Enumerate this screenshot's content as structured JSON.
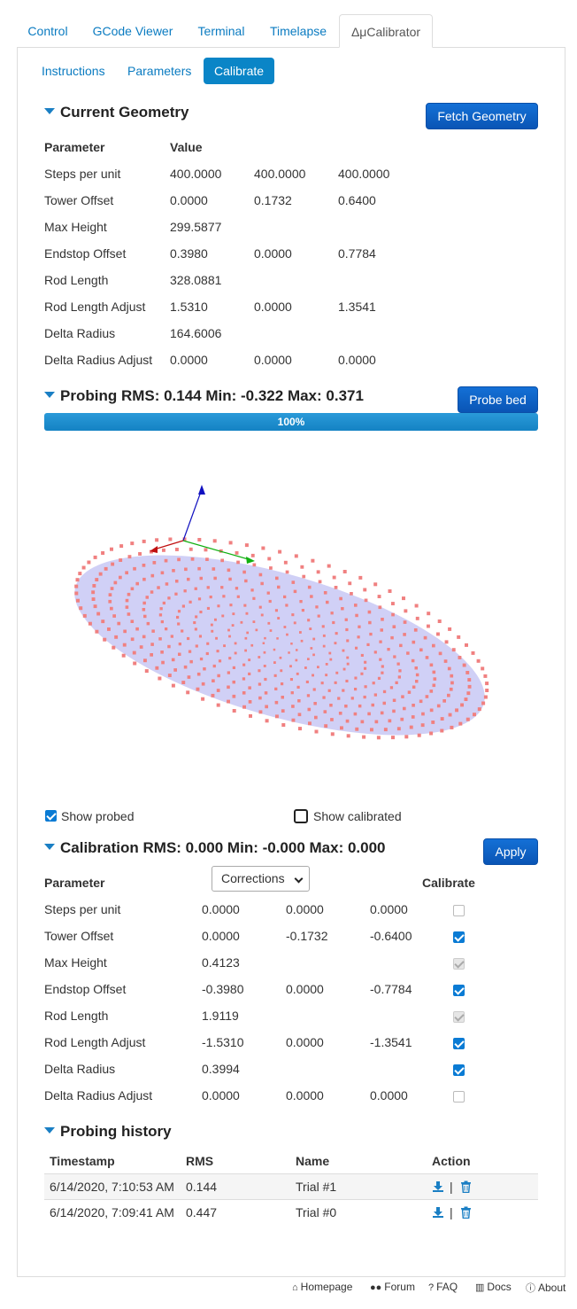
{
  "tabs": [
    {
      "label": "Control"
    },
    {
      "label": "GCode Viewer"
    },
    {
      "label": "Terminal"
    },
    {
      "label": "Timelapse"
    },
    {
      "label": "ΔμCalibrator"
    }
  ],
  "subtabs": [
    {
      "label": "Instructions"
    },
    {
      "label": "Parameters"
    },
    {
      "label": "Calibrate"
    }
  ],
  "geometry": {
    "title": "Current Geometry",
    "fetch_label": "Fetch Geometry",
    "col_param": "Parameter",
    "col_value": "Value",
    "rows": [
      {
        "name": "Steps per unit",
        "v": [
          "400.0000",
          "400.0000",
          "400.0000"
        ]
      },
      {
        "name": "Tower Offset",
        "v": [
          "0.0000",
          "0.1732",
          "0.6400"
        ]
      },
      {
        "name": "Max Height",
        "v": [
          "299.5877",
          "",
          ""
        ]
      },
      {
        "name": "Endstop Offset",
        "v": [
          "0.3980",
          "0.0000",
          "0.7784"
        ]
      },
      {
        "name": "Rod Length",
        "v": [
          "328.0881",
          "",
          ""
        ]
      },
      {
        "name": "Rod Length Adjust",
        "v": [
          "1.5310",
          "0.0000",
          "1.3541"
        ]
      },
      {
        "name": "Delta Radius",
        "v": [
          "164.6006",
          "",
          ""
        ]
      },
      {
        "name": "Delta Radius Adjust",
        "v": [
          "0.0000",
          "0.0000",
          "0.0000"
        ]
      }
    ]
  },
  "probing": {
    "title": "Probing RMS: 0.144 Min: -0.322 Max: 0.371",
    "probe_label": "Probe bed",
    "progress_text": "100%",
    "progress": 1.0,
    "point_color": "#f08080",
    "bed_color": "#c8c8f5"
  },
  "view_options": {
    "show_probed": "Show probed",
    "show_calibrated": "Show calibrated"
  },
  "calibration": {
    "title": "Calibration RMS: 0.000 Min: -0.000 Max: 0.000",
    "apply_label": "Apply",
    "col_param": "Parameter",
    "mode_select": "Corrections",
    "col_calibrate": "Calibrate",
    "rows": [
      {
        "name": "Steps per unit",
        "v": [
          "0.0000",
          "0.0000",
          "0.0000"
        ],
        "checked": false,
        "disabled": false
      },
      {
        "name": "Tower Offset",
        "v": [
          "0.0000",
          "-0.1732",
          "-0.6400"
        ],
        "checked": true,
        "disabled": false
      },
      {
        "name": "Max Height",
        "v": [
          "0.4123",
          "",
          ""
        ],
        "checked": true,
        "disabled": true
      },
      {
        "name": "Endstop Offset",
        "v": [
          "-0.3980",
          "0.0000",
          "-0.7784"
        ],
        "checked": true,
        "disabled": false
      },
      {
        "name": "Rod Length",
        "v": [
          "1.9119",
          "",
          ""
        ],
        "checked": true,
        "disabled": true
      },
      {
        "name": "Rod Length Adjust",
        "v": [
          "-1.5310",
          "0.0000",
          "-1.3541"
        ],
        "checked": true,
        "disabled": false
      },
      {
        "name": "Delta Radius",
        "v": [
          "0.3994",
          "",
          ""
        ],
        "checked": true,
        "disabled": false
      },
      {
        "name": "Delta Radius Adjust",
        "v": [
          "0.0000",
          "0.0000",
          "0.0000"
        ],
        "checked": false,
        "disabled": false
      }
    ]
  },
  "history": {
    "title": "Probing history",
    "cols": {
      "timestamp": "Timestamp",
      "rms": "RMS",
      "name": "Name",
      "action": "Action"
    },
    "rows": [
      {
        "timestamp": "6/14/2020, 7:10:53 AM",
        "rms": "0.144",
        "name": "Trial #1"
      },
      {
        "timestamp": "6/14/2020, 7:09:41 AM",
        "rms": "0.447",
        "name": "Trial #0"
      }
    ],
    "separator": "|"
  },
  "footer": [
    {
      "icon": "home-icon",
      "label": "Homepage"
    },
    {
      "icon": "users-icon",
      "label": "Forum"
    },
    {
      "icon": "question-icon",
      "label": "FAQ"
    },
    {
      "icon": "book-icon",
      "label": "Docs"
    },
    {
      "icon": "info-icon",
      "label": "About"
    }
  ]
}
